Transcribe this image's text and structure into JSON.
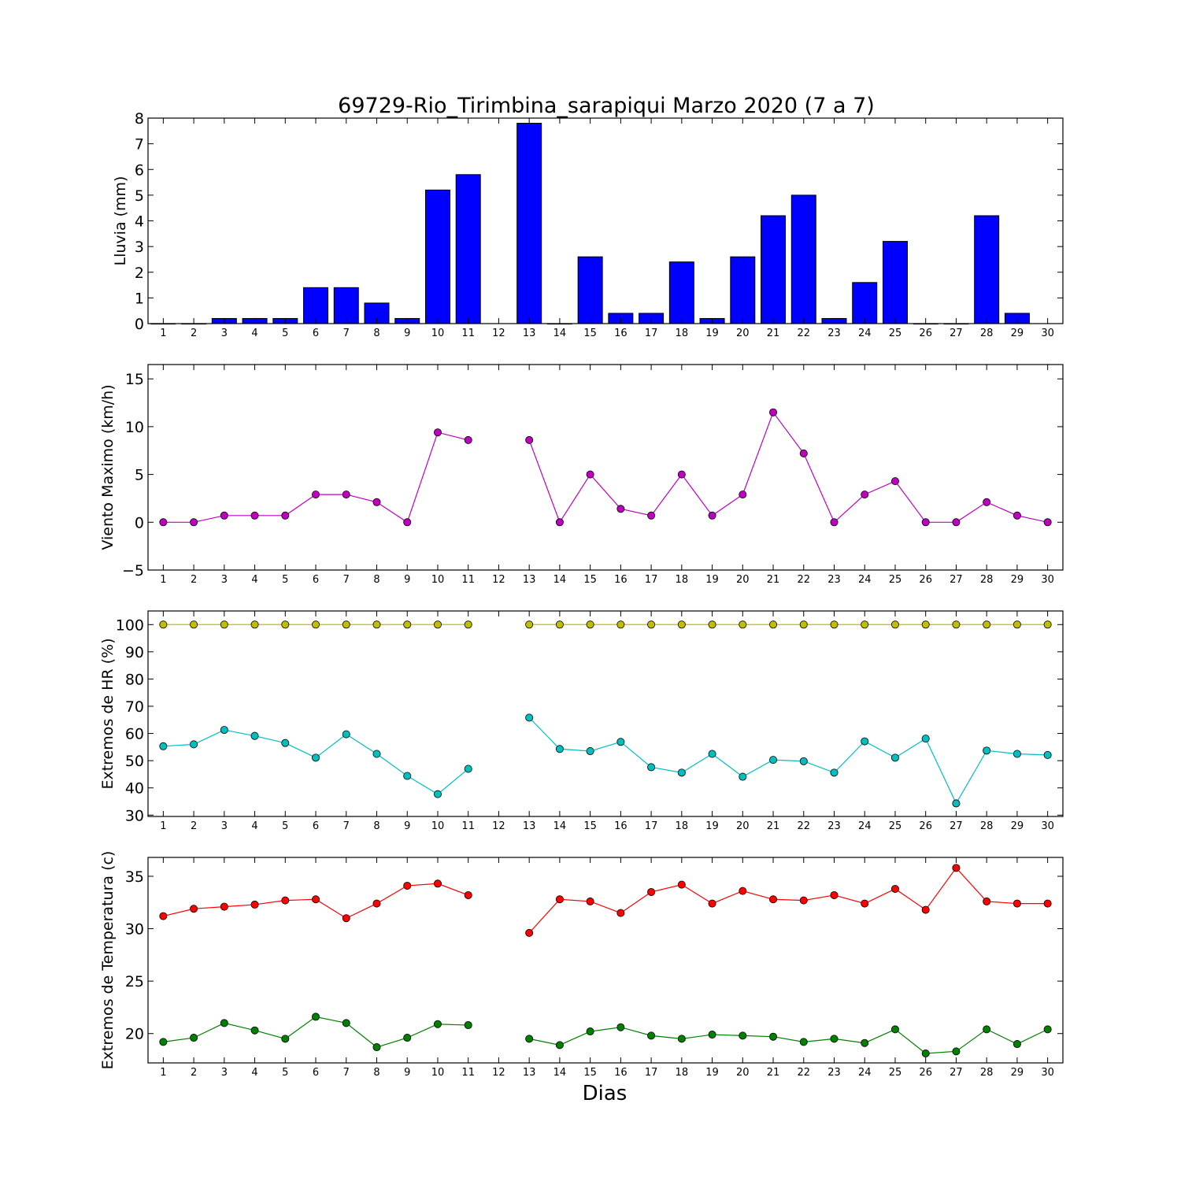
{
  "title": "69729-Rio_Tirimbina_sarapiqui Marzo 2020  (7 a 7)",
  "xlabel": "Dias",
  "colors": {
    "rain": "#0000ff",
    "wind": "#bf00bf",
    "hr_max": "#bfbf00",
    "hr_min": "#00bfbf",
    "temp_max": "#ff0000",
    "temp_min": "#008000"
  },
  "chart_data": [
    {
      "type": "bar",
      "ylabel": "Lluvia (mm)",
      "ylim": [
        0,
        8
      ],
      "yticks": [
        0,
        1,
        2,
        3,
        4,
        5,
        6,
        7,
        8
      ],
      "categories": [
        1,
        2,
        3,
        4,
        5,
        6,
        7,
        8,
        9,
        10,
        11,
        12,
        13,
        14,
        15,
        16,
        17,
        18,
        19,
        20,
        21,
        22,
        23,
        24,
        25,
        26,
        27,
        28,
        29,
        30
      ],
      "series": [
        {
          "color_key": "rain",
          "values": [
            0,
            0,
            0.2,
            0.2,
            0.2,
            1.4,
            1.4,
            0.8,
            0.2,
            5.2,
            5.8,
            null,
            7.8,
            0,
            2.6,
            0.4,
            0.4,
            2.4,
            0.2,
            2.6,
            4.2,
            5.0,
            0.2,
            1.6,
            3.2,
            0,
            0,
            4.2,
            0.4,
            null
          ]
        }
      ]
    },
    {
      "type": "line",
      "ylabel": "Viento Maximo (km/h)",
      "ylim": [
        -5,
        16.5
      ],
      "yticks": [
        -5,
        0,
        5,
        10,
        15
      ],
      "x": [
        1,
        2,
        3,
        4,
        5,
        6,
        7,
        8,
        9,
        10,
        11,
        12,
        13,
        14,
        15,
        16,
        17,
        18,
        19,
        20,
        21,
        22,
        23,
        24,
        25,
        26,
        27,
        28,
        29,
        30
      ],
      "series": [
        {
          "color_key": "wind",
          "values": [
            0,
            0,
            0.7,
            0.7,
            0.7,
            2.9,
            2.9,
            2.1,
            0,
            9.4,
            8.6,
            null,
            8.6,
            0,
            5.0,
            1.4,
            0.7,
            5.0,
            0.7,
            2.9,
            11.5,
            7.2,
            0,
            2.9,
            4.3,
            0,
            0,
            2.1,
            0.7,
            0
          ]
        }
      ]
    },
    {
      "type": "line",
      "ylabel": "Extremos de HR (%)",
      "ylim": [
        29.5,
        105
      ],
      "yticks": [
        30,
        40,
        50,
        60,
        70,
        80,
        90,
        100
      ],
      "x": [
        1,
        2,
        3,
        4,
        5,
        6,
        7,
        8,
        9,
        10,
        11,
        12,
        13,
        14,
        15,
        16,
        17,
        18,
        19,
        20,
        21,
        22,
        23,
        24,
        25,
        26,
        27,
        28,
        29,
        30
      ],
      "series": [
        {
          "color_key": "hr_max",
          "values": [
            100,
            100,
            100,
            100,
            100,
            100,
            100,
            100,
            100,
            100,
            100,
            null,
            100,
            100,
            100,
            100,
            100,
            100,
            100,
            100,
            100,
            100,
            100,
            100,
            100,
            100,
            100,
            100,
            100,
            100
          ]
        },
        {
          "color_key": "hr_min",
          "values": [
            55.3,
            56,
            61.3,
            59.1,
            56.5,
            51.1,
            59.7,
            52.5,
            44.4,
            37.7,
            47,
            null,
            65.8,
            54.3,
            53.5,
            56.9,
            47.6,
            45.6,
            52.5,
            44.1,
            50.3,
            49.8,
            45.6,
            57.1,
            51.1,
            58.1,
            34.3,
            53.7,
            52.5,
            52.1
          ]
        }
      ]
    },
    {
      "type": "line",
      "ylabel": "Extremos de Temperatura (c)",
      "ylim": [
        17.2,
        36.8
      ],
      "yticks": [
        20,
        25,
        30,
        35
      ],
      "x": [
        1,
        2,
        3,
        4,
        5,
        6,
        7,
        8,
        9,
        10,
        11,
        12,
        13,
        14,
        15,
        16,
        17,
        18,
        19,
        20,
        21,
        22,
        23,
        24,
        25,
        26,
        27,
        28,
        29,
        30
      ],
      "series": [
        {
          "color_key": "temp_max",
          "values": [
            31.2,
            31.9,
            32.1,
            32.3,
            32.7,
            32.8,
            31.0,
            32.4,
            34.1,
            34.3,
            33.2,
            null,
            29.6,
            32.8,
            32.6,
            31.5,
            33.5,
            34.2,
            32.4,
            33.6,
            32.8,
            32.7,
            33.2,
            32.4,
            33.8,
            31.8,
            35.8,
            32.6,
            32.4,
            32.4
          ]
        },
        {
          "color_key": "temp_min",
          "values": [
            19.2,
            19.6,
            21.0,
            20.3,
            19.5,
            21.6,
            21.0,
            18.7,
            19.6,
            20.9,
            20.8,
            null,
            19.5,
            18.9,
            20.2,
            20.6,
            19.8,
            19.5,
            19.9,
            19.8,
            19.7,
            19.2,
            19.5,
            19.1,
            20.4,
            18.1,
            18.3,
            20.4,
            19.0,
            20.4
          ]
        }
      ]
    }
  ]
}
